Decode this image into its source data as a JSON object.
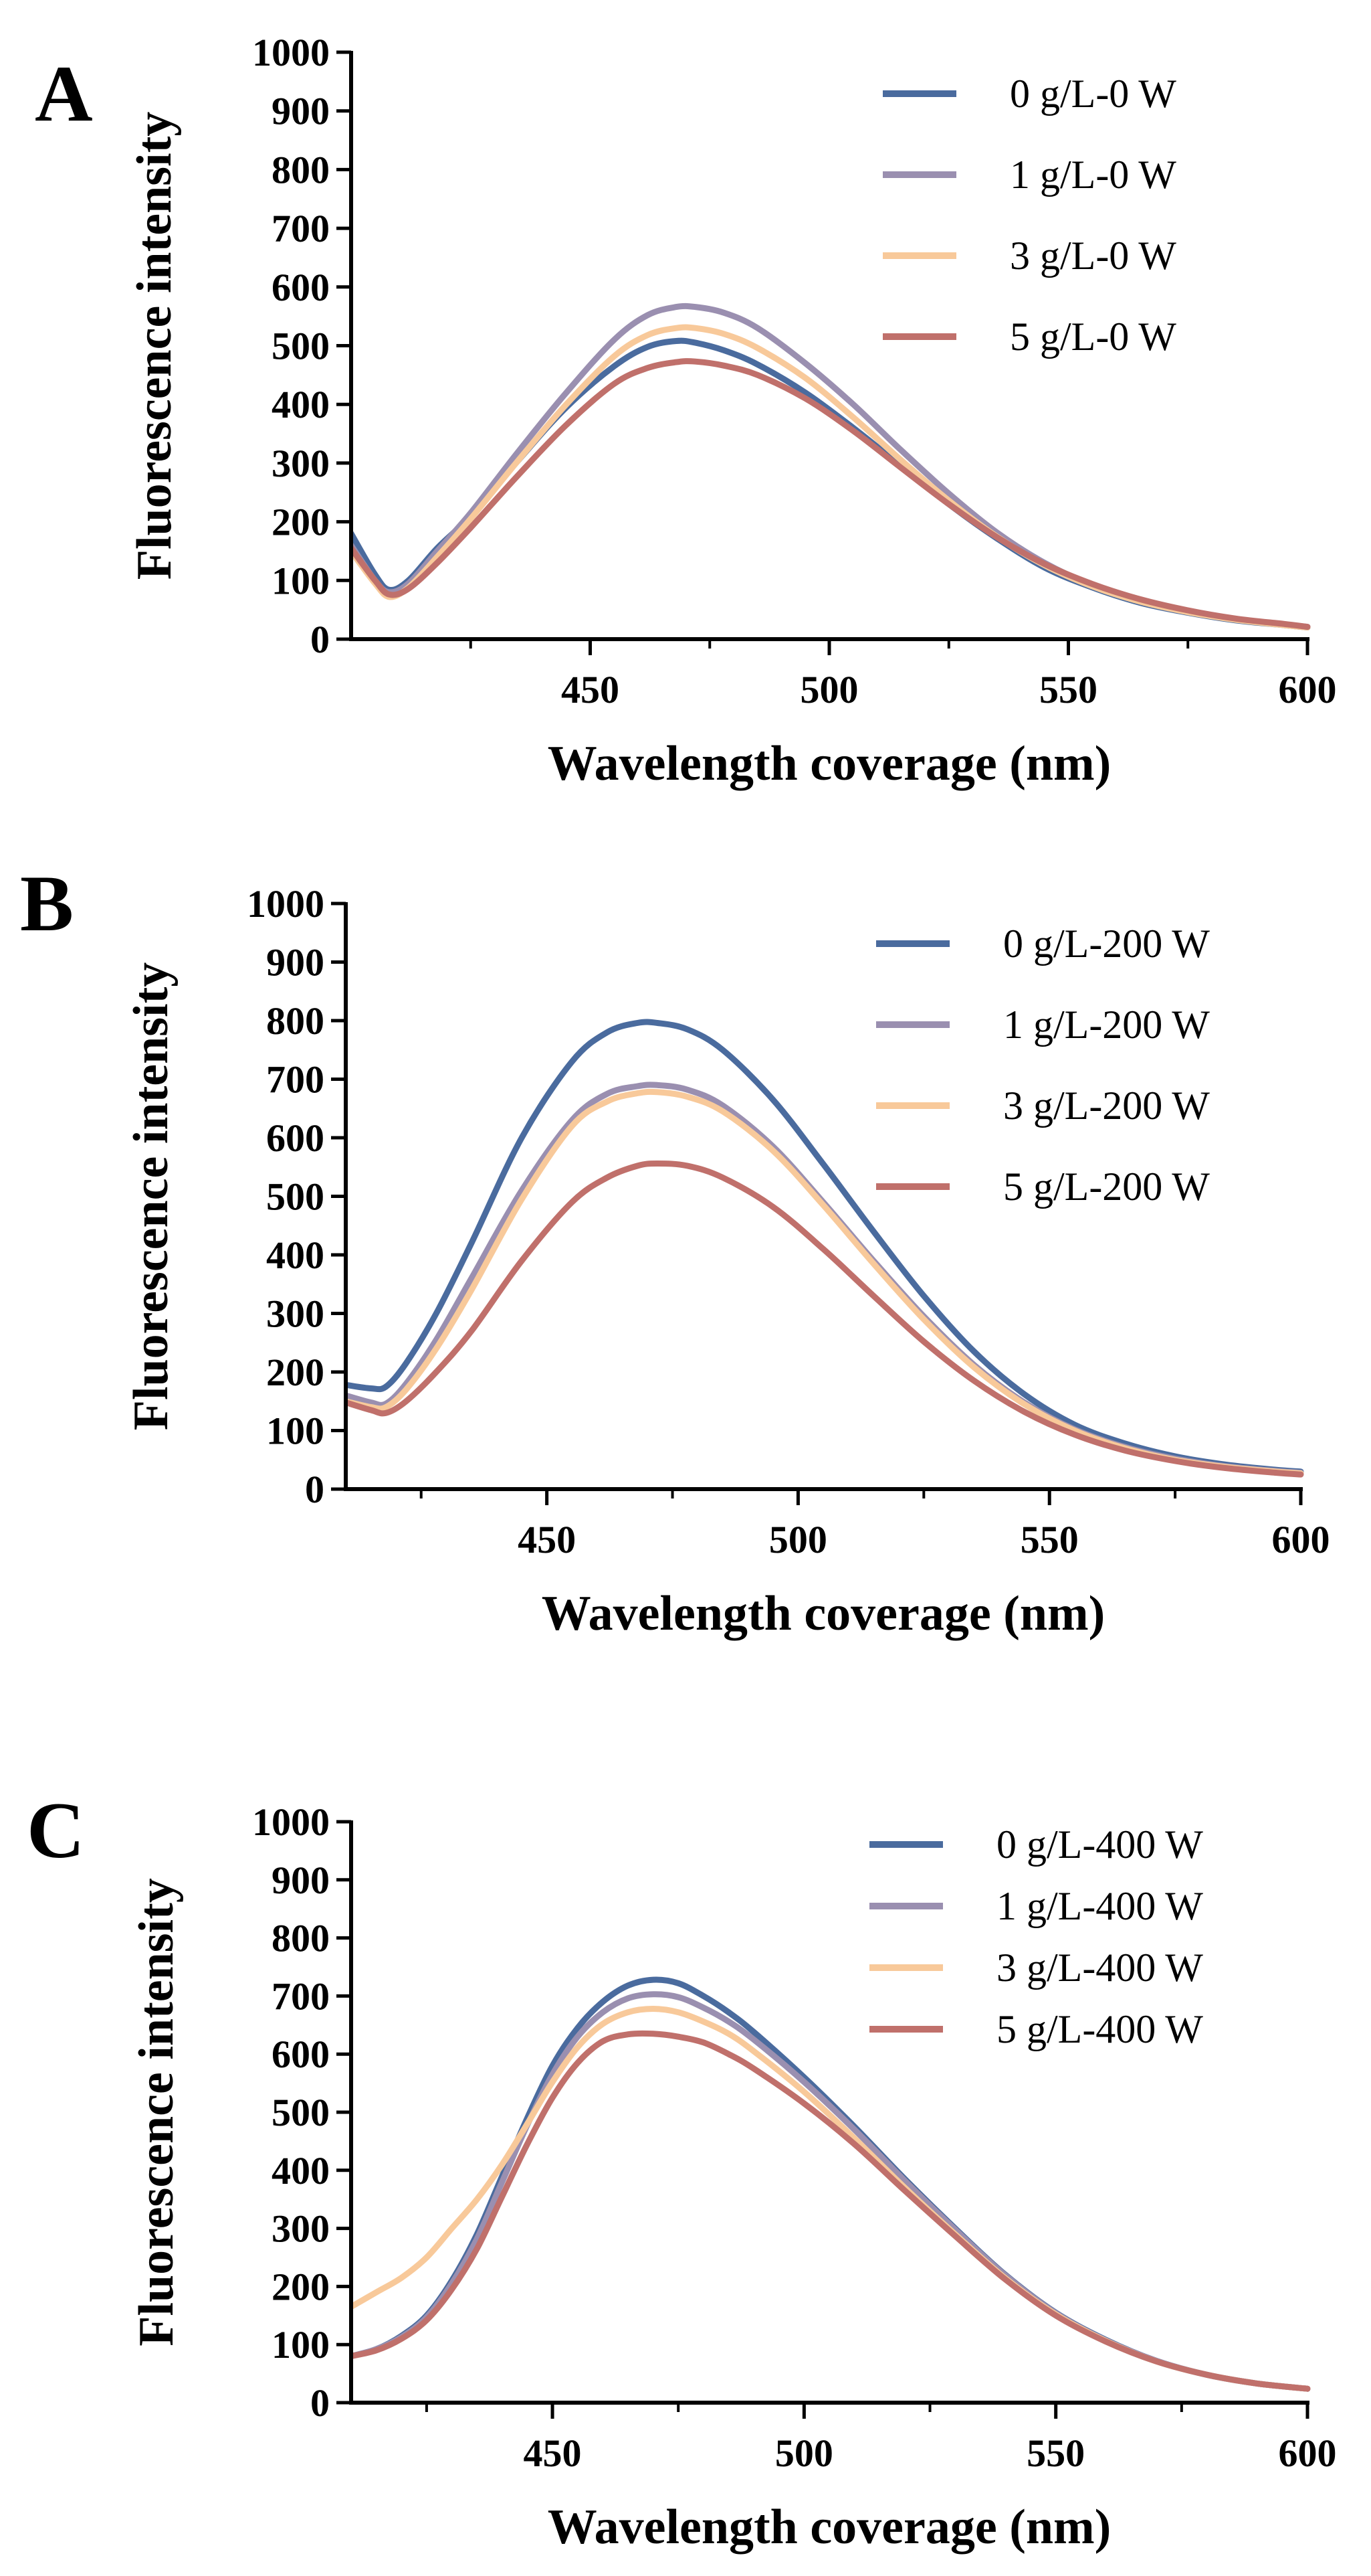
{
  "colors": {
    "series_0": "#4a6b9e",
    "series_1": "#9a8fb0",
    "series_3": "#f8c99a",
    "series_5": "#c0706b",
    "axis": "#000000"
  },
  "chart_data": [
    {
      "type": "line",
      "panel_label": "A",
      "xlabel": "Wavelength coverage (nm)",
      "ylabel": "Fluorescence intensity",
      "xlim": [
        400,
        600
      ],
      "ylim": [
        0,
        1000
      ],
      "x_ticks": [
        450,
        500,
        550,
        600
      ],
      "x_minor_ticks": [
        425,
        475,
        525,
        575
      ],
      "y_ticks": [
        0,
        100,
        200,
        300,
        400,
        500,
        600,
        700,
        800,
        900,
        1000
      ],
      "legend_position": "top-right",
      "series": [
        {
          "name": "0 g/L-0 W",
          "color_key": "series_0",
          "x": [
            400,
            405,
            408,
            412,
            418,
            425,
            435,
            445,
            455,
            462,
            468,
            472,
            478,
            485,
            495,
            505,
            515,
            525,
            535,
            545,
            555,
            565,
            575,
            585,
            595,
            600
          ],
          "y": [
            180,
            110,
            84,
            100,
            155,
            210,
            305,
            395,
            465,
            498,
            508,
            505,
            492,
            468,
            420,
            360,
            295,
            230,
            172,
            122,
            88,
            62,
            45,
            32,
            24,
            20
          ]
        },
        {
          "name": "1 g/L-0 W",
          "color_key": "series_1",
          "x": [
            400,
            405,
            408,
            412,
            418,
            425,
            435,
            445,
            455,
            462,
            468,
            472,
            478,
            485,
            495,
            505,
            515,
            525,
            535,
            545,
            555,
            565,
            575,
            585,
            595,
            600
          ],
          "y": [
            160,
            100,
            80,
            95,
            150,
            215,
            320,
            420,
            510,
            552,
            566,
            566,
            556,
            530,
            470,
            400,
            322,
            248,
            182,
            130,
            92,
            66,
            47,
            34,
            25,
            21
          ]
        },
        {
          "name": "3 g/L-0 W",
          "color_key": "series_3",
          "x": [
            400,
            405,
            408,
            412,
            418,
            425,
            435,
            445,
            455,
            462,
            468,
            472,
            478,
            485,
            495,
            505,
            515,
            525,
            535,
            545,
            555,
            565,
            575,
            585,
            595,
            600
          ],
          "y": [
            150,
            95,
            72,
            88,
            140,
            205,
            305,
            400,
            482,
            518,
            530,
            530,
            520,
            496,
            445,
            378,
            305,
            236,
            175,
            126,
            90,
            64,
            46,
            33,
            24,
            20
          ]
        },
        {
          "name": "5 g/L-0 W",
          "color_key": "series_5",
          "x": [
            400,
            405,
            408,
            412,
            418,
            425,
            435,
            445,
            455,
            462,
            468,
            472,
            478,
            485,
            495,
            505,
            515,
            525,
            535,
            545,
            555,
            565,
            575,
            585,
            595,
            600
          ],
          "y": [
            155,
            100,
            76,
            86,
            130,
            190,
            280,
            365,
            435,
            462,
            472,
            473,
            466,
            450,
            410,
            355,
            292,
            230,
            174,
            128,
            94,
            68,
            49,
            35,
            26,
            21
          ]
        }
      ]
    },
    {
      "type": "line",
      "panel_label": "B",
      "xlabel": "Wavelength coverage (nm)",
      "ylabel": "Fluorescence intensity",
      "xlim": [
        410,
        600
      ],
      "ylim": [
        0,
        1000
      ],
      "x_ticks": [
        450,
        500,
        550,
        600
      ],
      "x_minor_ticks": [
        425,
        475,
        525,
        575
      ],
      "y_ticks": [
        0,
        100,
        200,
        300,
        400,
        500,
        600,
        700,
        800,
        900,
        1000
      ],
      "legend_position": "top-right",
      "series": [
        {
          "name": "0 g/L-200 W",
          "color_key": "series_0",
          "x": [
            410,
            415,
            418,
            422,
            428,
            435,
            445,
            455,
            462,
            468,
            472,
            478,
            485,
            495,
            505,
            515,
            525,
            535,
            545,
            555,
            565,
            575,
            585,
            595,
            600
          ],
          "y": [
            178,
            172,
            175,
            215,
            300,
            420,
            600,
            730,
            780,
            796,
            796,
            785,
            750,
            665,
            555,
            440,
            330,
            235,
            162,
            110,
            78,
            56,
            42,
            33,
            30
          ]
        },
        {
          "name": "1 g/L-200 W",
          "color_key": "series_1",
          "x": [
            410,
            415,
            418,
            422,
            428,
            435,
            445,
            455,
            462,
            468,
            472,
            478,
            485,
            495,
            505,
            515,
            525,
            535,
            545,
            555,
            565,
            575,
            585,
            595,
            600
          ],
          "y": [
            160,
            148,
            146,
            180,
            255,
            360,
            510,
            630,
            675,
            688,
            690,
            682,
            655,
            585,
            490,
            390,
            295,
            212,
            148,
            102,
            72,
            52,
            39,
            31,
            28
          ]
        },
        {
          "name": "3 g/L-200 W",
          "color_key": "series_3",
          "x": [
            410,
            415,
            418,
            422,
            428,
            435,
            445,
            455,
            462,
            468,
            472,
            478,
            485,
            495,
            505,
            515,
            525,
            535,
            545,
            555,
            565,
            575,
            585,
            595,
            600
          ],
          "y": [
            150,
            140,
            140,
            170,
            240,
            340,
            495,
            620,
            662,
            676,
            678,
            670,
            645,
            578,
            485,
            385,
            290,
            208,
            145,
            100,
            70,
            50,
            38,
            30,
            27
          ]
        },
        {
          "name": "5 g/L-200 W",
          "color_key": "series_5",
          "x": [
            410,
            415,
            418,
            422,
            428,
            435,
            445,
            455,
            462,
            468,
            472,
            478,
            485,
            495,
            505,
            515,
            525,
            535,
            545,
            555,
            565,
            575,
            585,
            595,
            600
          ],
          "y": [
            148,
            135,
            130,
            150,
            200,
            270,
            390,
            490,
            532,
            552,
            556,
            552,
            532,
            482,
            410,
            330,
            252,
            185,
            132,
            93,
            66,
            48,
            36,
            28,
            25
          ]
        }
      ]
    },
    {
      "type": "line",
      "panel_label": "C",
      "xlabel": "Wavelength coverage (nm)",
      "ylabel": "Fluorescence intensity",
      "xlim": [
        410,
        600
      ],
      "ylim": [
        0,
        1000
      ],
      "x_ticks": [
        450,
        500,
        550,
        600
      ],
      "x_minor_ticks": [
        425,
        475,
        525,
        575
      ],
      "y_ticks": [
        0,
        100,
        200,
        300,
        400,
        500,
        600,
        700,
        800,
        900,
        1000
      ],
      "legend_position": "top-right",
      "series": [
        {
          "name": "0 g/L-400 W",
          "color_key": "series_0",
          "x": [
            410,
            415,
            420,
            425,
            430,
            435,
            440,
            445,
            450,
            455,
            460,
            465,
            470,
            475,
            480,
            485,
            490,
            500,
            510,
            520,
            530,
            540,
            550,
            560,
            570,
            580,
            590,
            600
          ],
          "y": [
            80,
            92,
            115,
            150,
            210,
            290,
            390,
            490,
            580,
            645,
            690,
            718,
            728,
            722,
            700,
            672,
            638,
            560,
            475,
            385,
            300,
            220,
            155,
            108,
            72,
            48,
            33,
            24
          ]
        },
        {
          "name": "1 g/L-400 W",
          "color_key": "series_1",
          "x": [
            410,
            415,
            420,
            425,
            430,
            435,
            440,
            445,
            450,
            455,
            460,
            465,
            470,
            475,
            480,
            485,
            490,
            500,
            510,
            520,
            530,
            540,
            550,
            560,
            570,
            580,
            590,
            600
          ],
          "y": [
            80,
            92,
            113,
            147,
            205,
            282,
            380,
            478,
            565,
            630,
            672,
            696,
            703,
            698,
            680,
            656,
            625,
            552,
            470,
            382,
            298,
            219,
            154,
            107,
            72,
            48,
            33,
            24
          ]
        },
        {
          "name": "3 g/L-400 W",
          "color_key": "series_3",
          "x": [
            410,
            415,
            420,
            425,
            430,
            435,
            440,
            445,
            450,
            455,
            460,
            465,
            470,
            475,
            480,
            485,
            490,
            500,
            510,
            520,
            530,
            540,
            550,
            560,
            570,
            580,
            590,
            600
          ],
          "y": [
            165,
            190,
            215,
            250,
            300,
            350,
            410,
            480,
            552,
            612,
            652,
            672,
            678,
            672,
            656,
            635,
            605,
            535,
            455,
            370,
            290,
            214,
            152,
            106,
            71,
            48,
            33,
            24
          ]
        },
        {
          "name": "5 g/L-400 W",
          "color_key": "series_5",
          "x": [
            410,
            415,
            420,
            425,
            430,
            435,
            440,
            445,
            450,
            455,
            460,
            465,
            470,
            475,
            480,
            485,
            490,
            500,
            510,
            520,
            530,
            540,
            550,
            560,
            570,
            580,
            590,
            600
          ],
          "y": [
            80,
            90,
            110,
            142,
            195,
            265,
            355,
            445,
            525,
            585,
            622,
            634,
            635,
            630,
            620,
            600,
            575,
            515,
            445,
            365,
            287,
            212,
            150,
            105,
            71,
            48,
            33,
            24
          ]
        }
      ]
    }
  ]
}
